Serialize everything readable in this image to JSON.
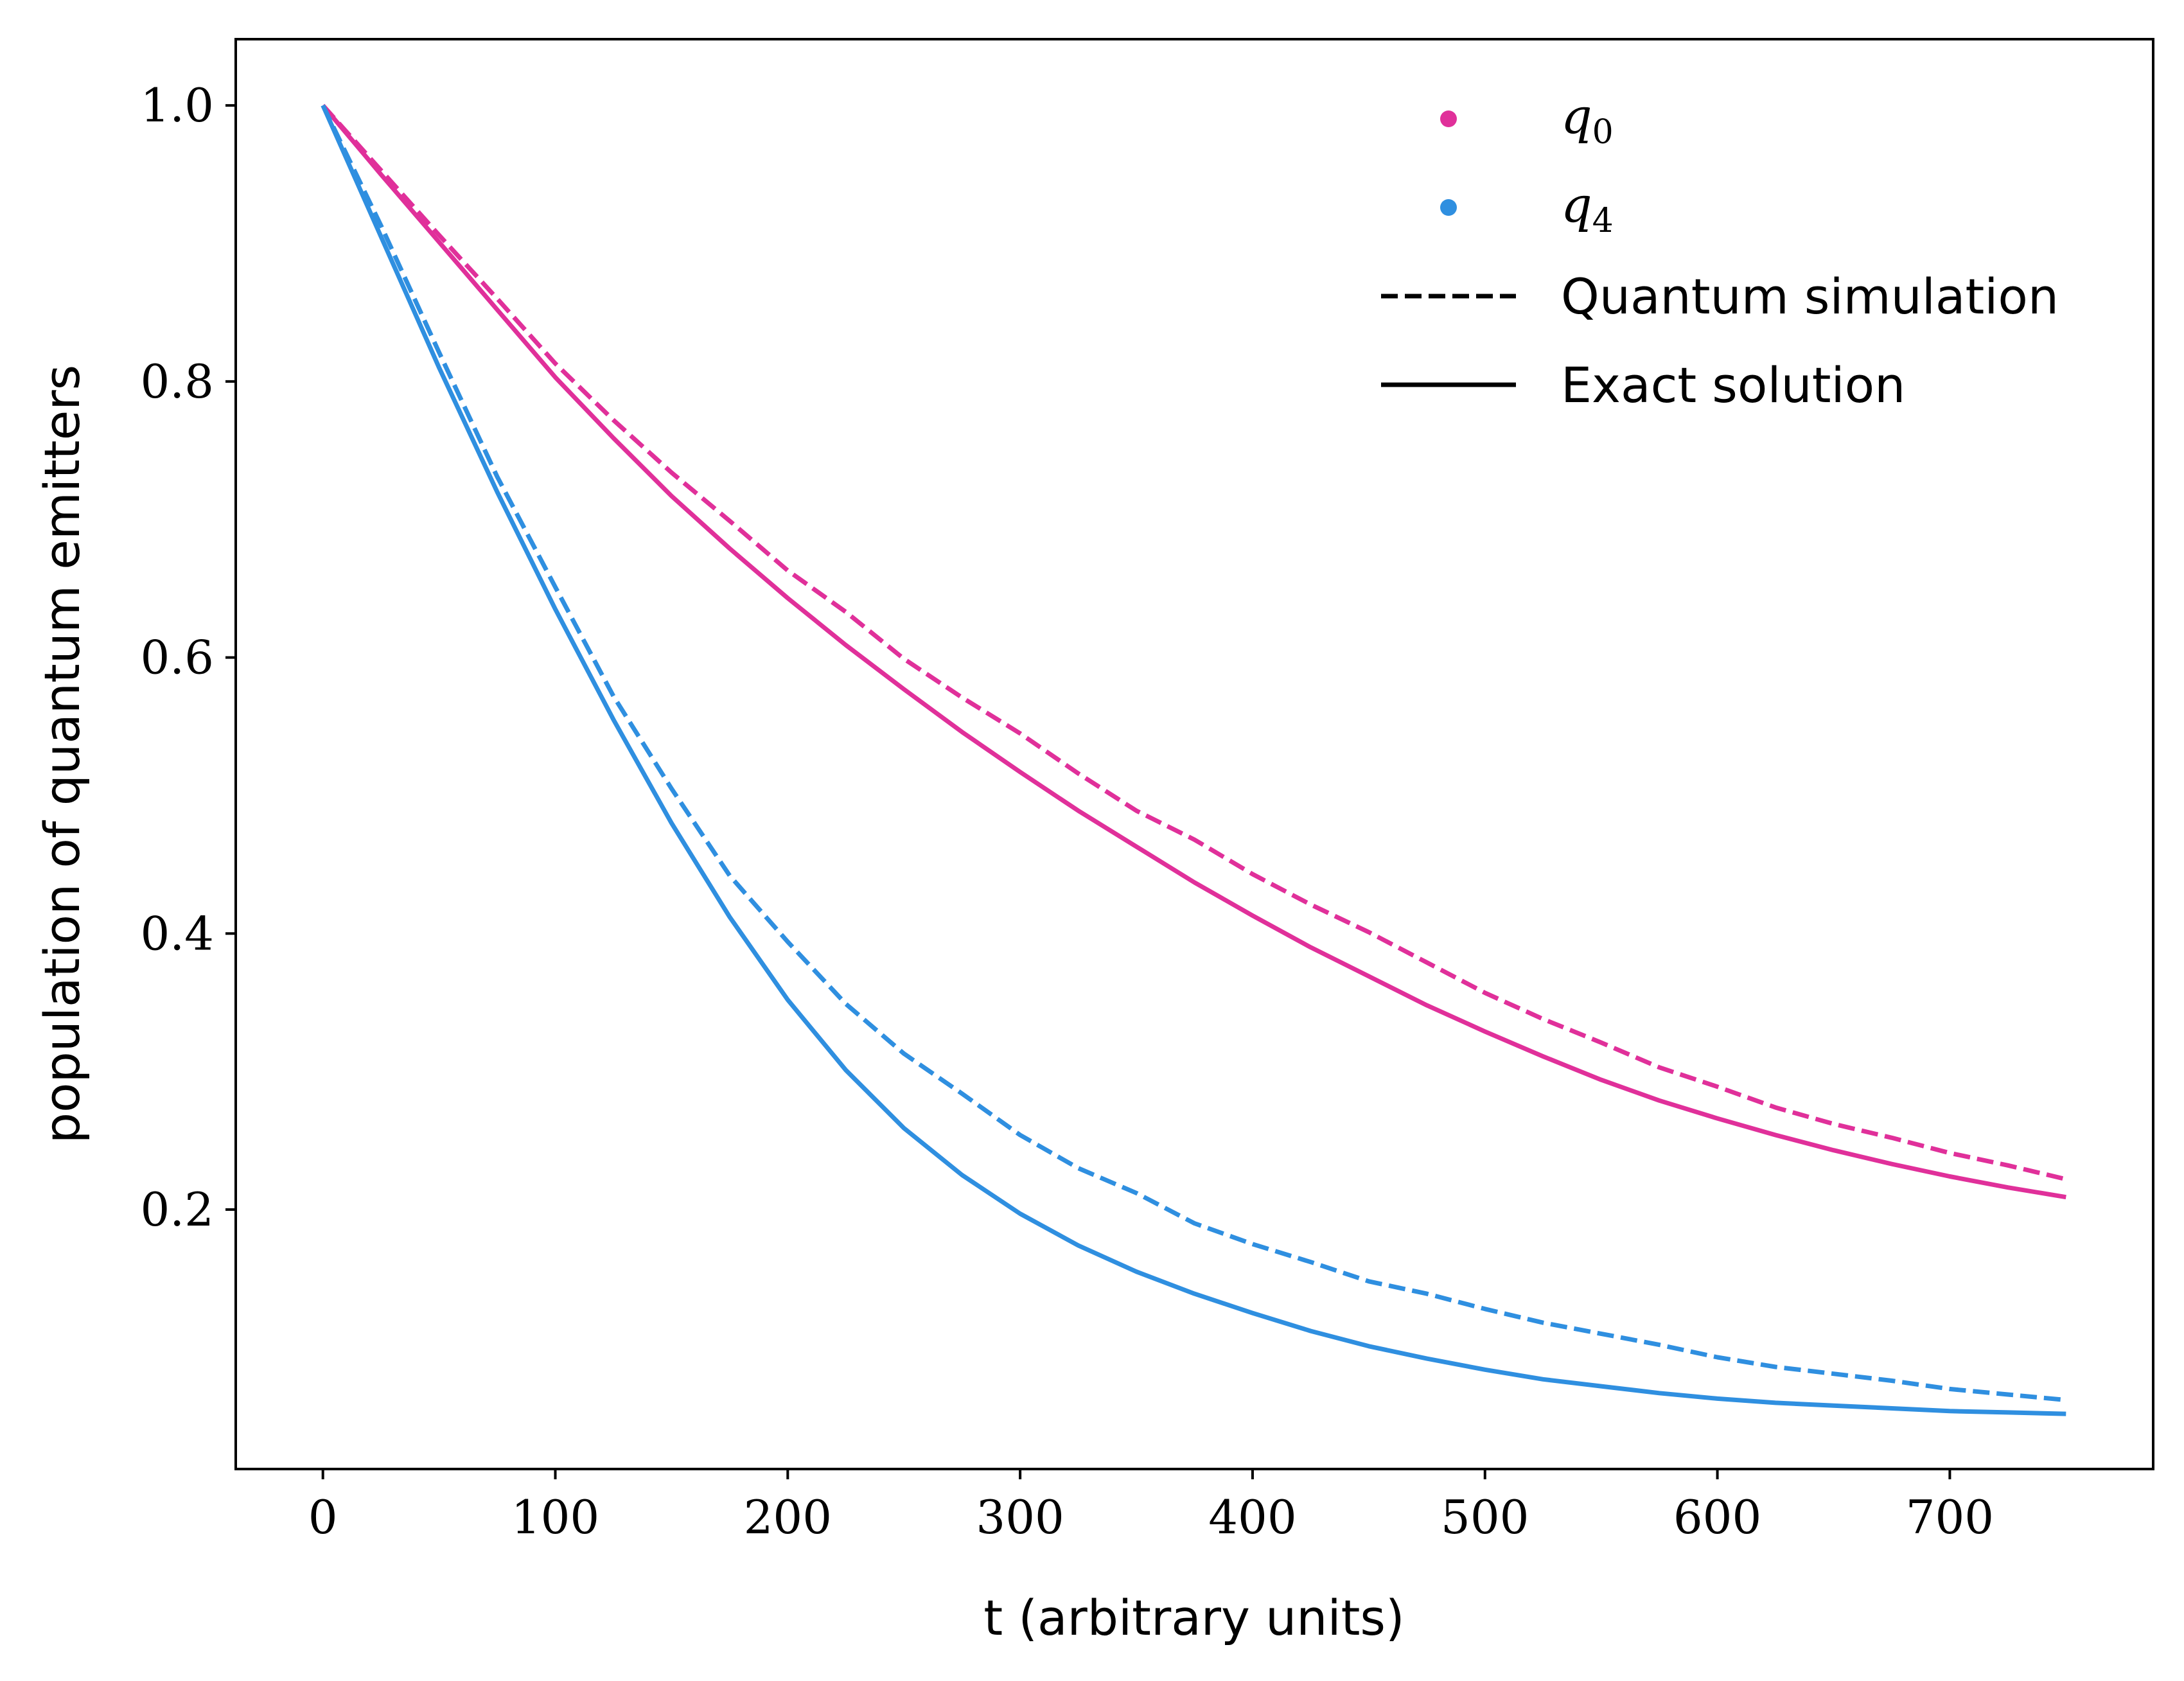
{
  "chart_data": {
    "type": "line",
    "title": "",
    "xlabel": "t (arbitrary units)",
    "ylabel": "population of quantum emitters",
    "xlim": [
      -37.5,
      787.5
    ],
    "ylim": [
      0.012,
      1.048
    ],
    "xticks": [
      0,
      100,
      200,
      300,
      400,
      500,
      600,
      700
    ],
    "xtick_labels": [
      "0",
      "100",
      "200",
      "300",
      "400",
      "500",
      "600",
      "700"
    ],
    "yticks": [
      0.2,
      0.4,
      0.6,
      0.8,
      1.0
    ],
    "ytick_labels": [
      "0.2",
      "0.4",
      "0.6",
      "0.8",
      "1.0"
    ],
    "grid": false,
    "legend_position": "top-right",
    "legend": {
      "markers": [
        {
          "base": "q",
          "sub": "0",
          "color": "#e0309a"
        },
        {
          "base": "q",
          "sub": "4",
          "color": "#2f8fe0"
        }
      ],
      "lines": [
        {
          "label": "Quantum simulation",
          "style": "dashed",
          "color": "#000000"
        },
        {
          "label": "Exact solution",
          "style": "solid",
          "color": "#000000"
        }
      ]
    },
    "x": [
      0,
      25,
      50,
      75,
      100,
      125,
      150,
      175,
      200,
      225,
      250,
      275,
      300,
      325,
      350,
      375,
      400,
      425,
      450,
      475,
      500,
      525,
      550,
      575,
      600,
      625,
      650,
      675,
      700,
      725,
      750
    ],
    "series": [
      {
        "key": "q0_sim",
        "emitter": "q0",
        "style": "dashed",
        "color": "#e0309a",
        "values": [
          1.0,
          0.953,
          0.906,
          0.86,
          0.813,
          0.772,
          0.734,
          0.699,
          0.663,
          0.633,
          0.599,
          0.571,
          0.545,
          0.516,
          0.489,
          0.468,
          0.443,
          0.421,
          0.401,
          0.379,
          0.357,
          0.338,
          0.321,
          0.303,
          0.289,
          0.274,
          0.262,
          0.252,
          0.241,
          0.232,
          0.222
        ]
      },
      {
        "key": "q0_exact",
        "emitter": "q0",
        "style": "solid",
        "color": "#e0309a",
        "values": [
          1.0,
          0.95,
          0.901,
          0.852,
          0.803,
          0.759,
          0.717,
          0.679,
          0.643,
          0.609,
          0.577,
          0.546,
          0.517,
          0.489,
          0.463,
          0.437,
          0.413,
          0.39,
          0.369,
          0.348,
          0.329,
          0.311,
          0.294,
          0.279,
          0.266,
          0.254,
          0.243,
          0.233,
          0.224,
          0.216,
          0.209
        ]
      },
      {
        "key": "q4_sim",
        "emitter": "q4",
        "style": "dashed",
        "color": "#2f8fe0",
        "values": [
          1.0,
          0.913,
          0.821,
          0.731,
          0.651,
          0.572,
          0.505,
          0.442,
          0.394,
          0.349,
          0.313,
          0.284,
          0.254,
          0.23,
          0.212,
          0.19,
          0.175,
          0.162,
          0.148,
          0.139,
          0.128,
          0.118,
          0.11,
          0.102,
          0.093,
          0.086,
          0.081,
          0.076,
          0.07,
          0.066,
          0.062
        ]
      },
      {
        "key": "q4_exact",
        "emitter": "q4",
        "style": "solid",
        "color": "#2f8fe0",
        "values": [
          1.0,
          0.905,
          0.81,
          0.72,
          0.635,
          0.555,
          0.48,
          0.412,
          0.352,
          0.301,
          0.259,
          0.225,
          0.197,
          0.174,
          0.155,
          0.139,
          0.125,
          0.112,
          0.101,
          0.092,
          0.084,
          0.077,
          0.072,
          0.067,
          0.063,
          0.06,
          0.058,
          0.056,
          0.054,
          0.053,
          0.052
        ]
      }
    ]
  }
}
